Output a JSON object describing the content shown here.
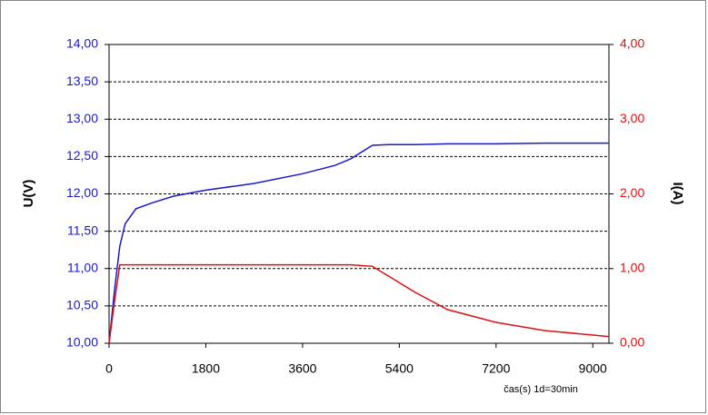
{
  "chart_data": {
    "type": "line",
    "x_label": "čas(s) 1d=30min",
    "y_label": "U(V)",
    "y2_label": "I(A)",
    "x": [
      0,
      100,
      200,
      300,
      500,
      800,
      1200,
      1800,
      2700,
      3600,
      4200,
      4500,
      4900,
      5200,
      5700,
      6300,
      7200,
      8100,
      9300
    ],
    "xlim": [
      0,
      9300
    ],
    "xticks": [
      0,
      1800,
      3600,
      5400,
      7200,
      9000
    ],
    "ylim": [
      10,
      14
    ],
    "yticks": [
      {
        "value": 10,
        "label": "10,00"
      },
      {
        "value": 10.5,
        "label": "10,50"
      },
      {
        "value": 11,
        "label": "11,00"
      },
      {
        "value": 11.5,
        "label": "11,50"
      },
      {
        "value": 12,
        "label": "12,00"
      },
      {
        "value": 12.5,
        "label": "12,50"
      },
      {
        "value": 13,
        "label": "13,00"
      },
      {
        "value": 13.5,
        "label": "13,50"
      },
      {
        "value": 14,
        "label": "14,00"
      }
    ],
    "y2lim": [
      0,
      4
    ],
    "y2ticks": [
      {
        "value": 0,
        "label": "0,00"
      },
      {
        "value": 1,
        "label": "1,00"
      },
      {
        "value": 2,
        "label": "2,00"
      },
      {
        "value": 3,
        "label": "3,00"
      },
      {
        "value": 4,
        "label": "4,00"
      }
    ],
    "grid": true,
    "series": [
      {
        "name": "U",
        "color": "#1a1acc",
        "values": [
          10.0,
          10.7,
          11.3,
          11.6,
          11.8,
          11.88,
          11.97,
          12.05,
          12.14,
          12.27,
          12.38,
          12.47,
          12.65,
          12.66,
          12.66,
          12.67,
          12.67,
          12.68,
          12.68
        ]
      },
      {
        "name": "I",
        "color": "#dd1111",
        "axis": "y2",
        "values": [
          0.0,
          0.55,
          1.05,
          1.05,
          1.05,
          1.05,
          1.05,
          1.05,
          1.05,
          1.05,
          1.05,
          1.05,
          1.03,
          0.9,
          0.68,
          0.45,
          0.28,
          0.17,
          0.09
        ]
      }
    ]
  }
}
